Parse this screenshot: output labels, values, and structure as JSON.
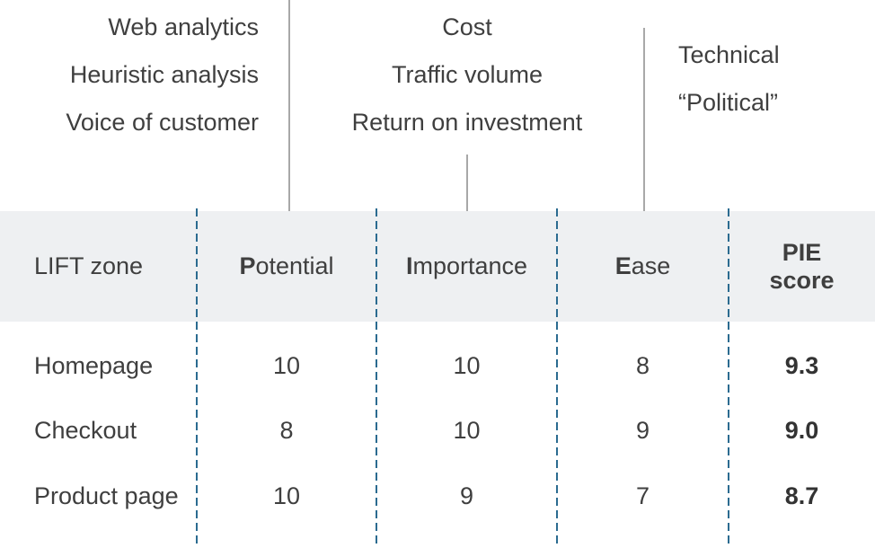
{
  "colors": {
    "text": "#3f3f3f",
    "band_bg": "#eef0f2",
    "separator": "#2b6b90",
    "connector": "#a8a8a8"
  },
  "annotations": {
    "potential_sources": [
      "Web analytics",
      "Heuristic analysis",
      "Voice of customer"
    ],
    "importance_sources": [
      "Cost",
      "Traffic volume",
      "Return on investment"
    ],
    "ease_sources": [
      "Technical",
      "“Political”"
    ]
  },
  "table": {
    "headers": [
      {
        "label": "LIFT zone"
      },
      {
        "first": "P",
        "rest": "otential"
      },
      {
        "first": "I",
        "rest": "mportance"
      },
      {
        "first": "E",
        "rest": "ase"
      },
      {
        "line1": "PIE",
        "line2": "score"
      }
    ],
    "rows": [
      {
        "zone": "Homepage",
        "potential": "10",
        "importance": "10",
        "ease": "8",
        "pie_score": "9.3"
      },
      {
        "zone": "Checkout",
        "potential": "8",
        "importance": "10",
        "ease": "9",
        "pie_score": "9.0"
      },
      {
        "zone": "Product page",
        "potential": "10",
        "importance": "9",
        "ease": "7",
        "pie_score": "8.7"
      }
    ]
  }
}
